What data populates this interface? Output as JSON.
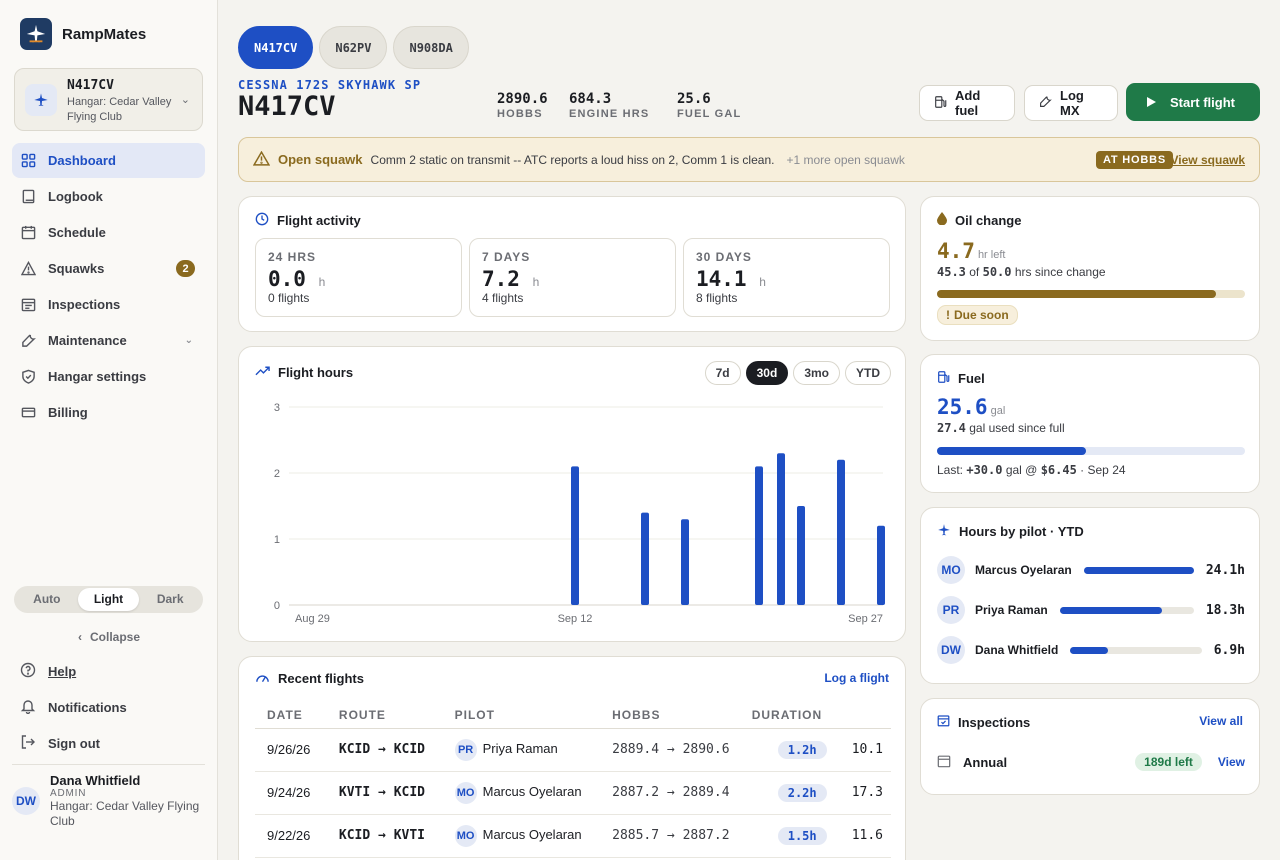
{
  "app": {
    "name": "RampMates"
  },
  "sidebar": {
    "aircraft": {
      "registration": "N417CV",
      "hangar": "Hangar: Cedar Valley Flying Club"
    },
    "nav": [
      {
        "label": "Dashboard",
        "icon": "grid-icon",
        "active": true
      },
      {
        "label": "Logbook",
        "icon": "book-icon"
      },
      {
        "label": "Schedule",
        "icon": "calendar-icon"
      },
      {
        "label": "Squawks",
        "icon": "warning-icon",
        "badge": "2"
      },
      {
        "label": "Inspections",
        "icon": "checklist-icon"
      },
      {
        "label": "Maintenance",
        "icon": "wrench-icon",
        "expandable": true
      },
      {
        "label": "Hangar settings",
        "icon": "shield-icon"
      },
      {
        "label": "Billing",
        "icon": "card-icon"
      }
    ],
    "theme": {
      "options": [
        "Auto",
        "Light",
        "Dark"
      ],
      "selected": "Light"
    },
    "collapse_label": "Collapse",
    "footer": {
      "help": "Help",
      "notifications": "Notifications",
      "sign_out": "Sign out"
    },
    "user": {
      "initials": "DW",
      "name": "Dana Whitfield",
      "role": "ADMIN",
      "hangar": "Hangar: Cedar Valley Flying Club"
    }
  },
  "aircraft_tabs": [
    "N417CV",
    "N62PV",
    "N908DA"
  ],
  "header": {
    "model": "CESSNA 172S SKYHAWK SP",
    "registration": "N417CV",
    "stats": [
      {
        "value": "2890.6",
        "label": "HOBBS"
      },
      {
        "value": "684.3",
        "label": "ENGINE HRS"
      },
      {
        "value": "25.6",
        "label": "FUEL GAL"
      }
    ],
    "buttons": {
      "add_fuel": "Add fuel",
      "log_mx": "Log MX",
      "start_flight": "Start flight"
    }
  },
  "squawk": {
    "title": "Open squawk",
    "text": "Comm 2 static on transmit -- ATC reports a loud hiss on 2, Comm 1 is clean.",
    "more": "+1 more open squawk",
    "pill": "AT HOBBS",
    "link": "View squawk"
  },
  "flight_activity": {
    "title": "Flight activity",
    "periods": [
      {
        "label": "24 HRS",
        "value": "0.0",
        "unit": "h",
        "flights": "0 flights"
      },
      {
        "label": "7 DAYS",
        "value": "7.2",
        "unit": "h",
        "flights": "4 flights"
      },
      {
        "label": "30 DAYS",
        "value": "14.1",
        "unit": "h",
        "flights": "8 flights"
      }
    ]
  },
  "flight_hours": {
    "title": "Flight hours",
    "ranges": [
      "7d",
      "30d",
      "3mo",
      "YTD"
    ],
    "selected_range": "30d"
  },
  "chart_data": {
    "type": "bar",
    "ylim": [
      0,
      3
    ],
    "yticks": [
      "0",
      "1",
      "2",
      "3"
    ],
    "x_range_days": [
      0,
      29
    ],
    "xtick_labels": [
      {
        "day": 0,
        "label": "Aug 29"
      },
      {
        "day": 14,
        "label": "Sep 12"
      },
      {
        "day": 29,
        "label": "Sep 27"
      }
    ],
    "bars": [
      {
        "day": 14,
        "value": 2.1
      },
      {
        "day": 17.5,
        "value": 1.4
      },
      {
        "day": 19.5,
        "value": 1.3
      },
      {
        "day": 23.2,
        "value": 2.1
      },
      {
        "day": 24.3,
        "value": 2.3
      },
      {
        "day": 25.3,
        "value": 1.5
      },
      {
        "day": 27.3,
        "value": 2.2
      },
      {
        "day": 29.3,
        "value": 1.2
      }
    ],
    "color": "#1e4fc4",
    "grid": true
  },
  "recent_flights": {
    "title": "Recent flights",
    "link": "Log a flight",
    "columns": [
      "DATE",
      "ROUTE",
      "PILOT",
      "HOBBS",
      "DURATION"
    ],
    "rows": [
      {
        "date": "9/26/26",
        "route": "KCID → KCID",
        "pilot_initials": "PR",
        "pilot": "Priya Raman",
        "hobbs": "2889.4 → 2890.6",
        "duration": "1.2h",
        "extra": "10.1"
      },
      {
        "date": "9/24/26",
        "route": "KVTI → KCID",
        "pilot_initials": "MO",
        "pilot": "Marcus Oyelaran",
        "hobbs": "2887.2 → 2889.4",
        "duration": "2.2h",
        "extra": "17.3"
      },
      {
        "date": "9/22/26",
        "route": "KCID → KVTI",
        "pilot_initials": "MO",
        "pilot": "Marcus Oyelaran",
        "hobbs": "2885.7 → 2887.2",
        "duration": "1.5h",
        "extra": "11.6"
      }
    ]
  },
  "oil_change": {
    "title": "Oil change",
    "value": "4.7",
    "unit": "hr left",
    "since_value": "45.3",
    "of_word": "of",
    "interval": "50.0",
    "since_suffix": "hrs since change",
    "progress": 0.906,
    "status": "Due soon"
  },
  "fuel": {
    "title": "Fuel",
    "value": "25.6",
    "unit": "gal",
    "used_value": "27.4",
    "used_suffix": "gal used since full",
    "level": 0.483,
    "last_label": "Last:",
    "last_amount": "+30.0",
    "last_unit": "gal @",
    "last_price": "$6.45",
    "last_date": "· Sep 24"
  },
  "hours_by_pilot": {
    "title": "Hours by pilot · YTD",
    "pilots": [
      {
        "initials": "MO",
        "name": "Marcus Oyelaran",
        "hours": "24.1h",
        "share": 1.0
      },
      {
        "initials": "PR",
        "name": "Priya Raman",
        "hours": "18.3h",
        "share": 0.76
      },
      {
        "initials": "DW",
        "name": "Dana Whitfield",
        "hours": "6.9h",
        "share": 0.29
      }
    ]
  },
  "inspections": {
    "title": "Inspections",
    "link": "View all",
    "items": [
      {
        "name": "Annual",
        "badge": "189d left",
        "action": "View"
      }
    ]
  },
  "colors": {
    "accent": "#1e4fc4",
    "primary_button": "#1f7a48",
    "warning": "#8a6a1f"
  }
}
